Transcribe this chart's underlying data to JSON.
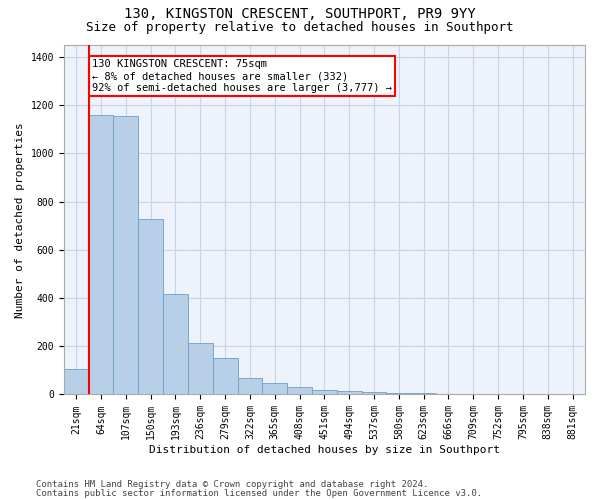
{
  "title1": "130, KINGSTON CRESCENT, SOUTHPORT, PR9 9YY",
  "title2": "Size of property relative to detached houses in Southport",
  "xlabel": "Distribution of detached houses by size in Southport",
  "ylabel": "Number of detached properties",
  "categories": [
    "21sqm",
    "64sqm",
    "107sqm",
    "150sqm",
    "193sqm",
    "236sqm",
    "279sqm",
    "322sqm",
    "365sqm",
    "408sqm",
    "451sqm",
    "494sqm",
    "537sqm",
    "580sqm",
    "623sqm",
    "666sqm",
    "709sqm",
    "752sqm",
    "795sqm",
    "838sqm",
    "881sqm"
  ],
  "values": [
    105,
    1160,
    1155,
    730,
    415,
    215,
    150,
    70,
    48,
    30,
    18,
    15,
    10,
    7,
    5,
    3,
    2,
    1,
    1,
    1,
    0
  ],
  "bar_color": "#b8cfe8",
  "bar_edge_color": "#6e9ec5",
  "annotation_text": "130 KINGSTON CRESCENT: 75sqm\n← 8% of detached houses are smaller (332)\n92% of semi-detached houses are larger (3,777) →",
  "annotation_box_color": "white",
  "annotation_box_edge_color": "red",
  "red_line_bar_index": 1,
  "ylim": [
    0,
    1450
  ],
  "yticks": [
    0,
    200,
    400,
    600,
    800,
    1000,
    1200,
    1400
  ],
  "footer1": "Contains HM Land Registry data © Crown copyright and database right 2024.",
  "footer2": "Contains public sector information licensed under the Open Government Licence v3.0.",
  "bg_color": "#edf2fb",
  "grid_color": "#c8d4ea",
  "title_fontsize": 10,
  "subtitle_fontsize": 9,
  "axis_label_fontsize": 8,
  "tick_fontsize": 7,
  "footer_fontsize": 6.5,
  "annot_fontsize": 7.5
}
